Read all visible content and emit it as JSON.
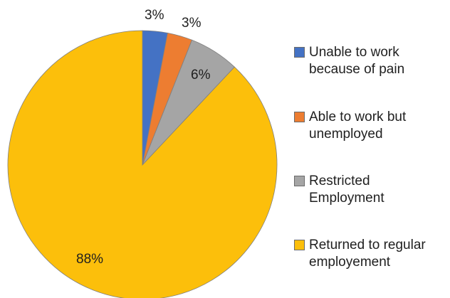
{
  "chart_data": {
    "type": "pie",
    "slices": [
      {
        "label": "Unable to work because of pain",
        "value": 3,
        "value_label": "3%",
        "color": "#4472c4"
      },
      {
        "label": "Able to work but unemployed",
        "value": 3,
        "value_label": "3%",
        "color": "#ed7d31"
      },
      {
        "label": "Restricted Employment",
        "value": 6,
        "value_label": "6%",
        "color": "#a5a5a5"
      },
      {
        "label": "Returned to regular employement",
        "value": 88,
        "value_label": "88%",
        "color": "#fcbf0b"
      }
    ],
    "legend": {
      "placement": "right",
      "items": [
        {
          "line1": "Unable to work",
          "line2": "because of pain"
        },
        {
          "line1": "Able to work but",
          "line2": "unemployed"
        },
        {
          "line1": "Restricted",
          "line2": "Employment"
        },
        {
          "line1": "Returned to regular",
          "line2": "employement"
        }
      ]
    },
    "title": "",
    "start_angle_deg": 0,
    "direction": "clockwise"
  }
}
